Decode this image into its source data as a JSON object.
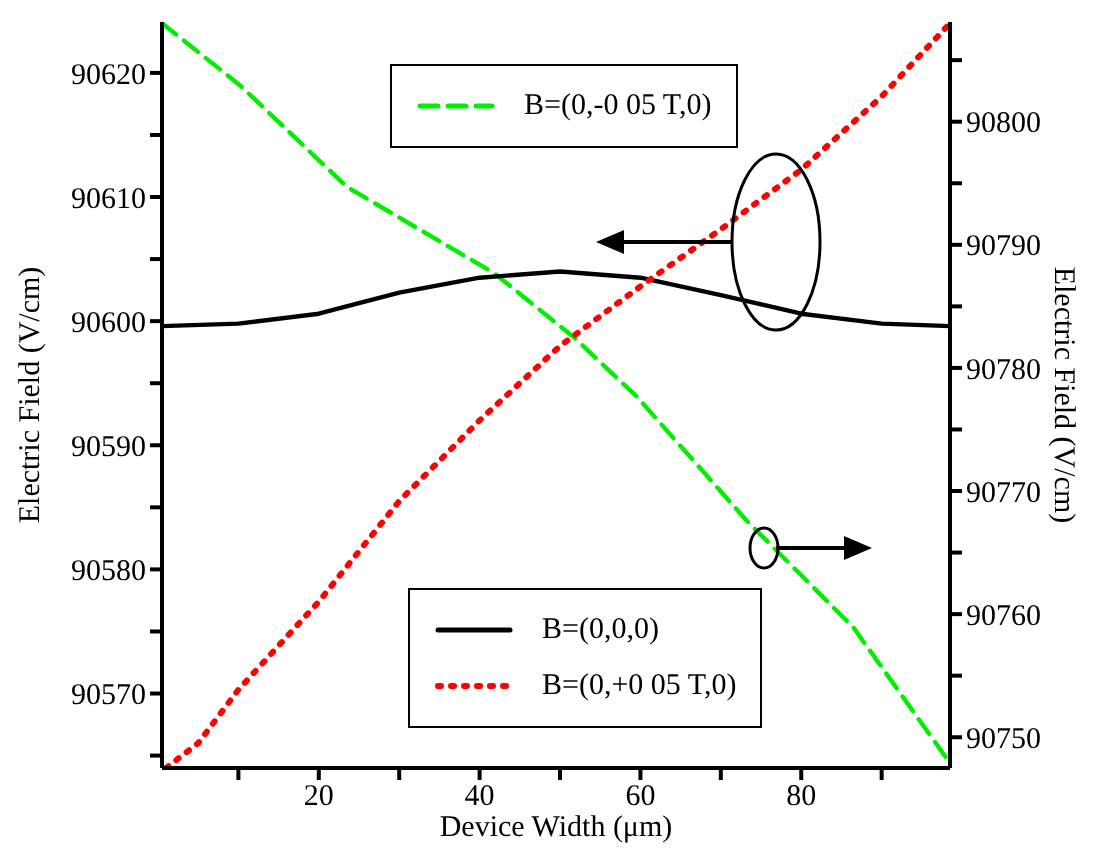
{
  "chart_data": {
    "type": "line",
    "xlabel": "Device Width (μm)",
    "ylabel": "Electric Field (V/cm)",
    "y2label": "Electric Field (V/cm)",
    "xlim": [
      0.5,
      98.5
    ],
    "xticks": [
      {
        "value": 10,
        "label": null
      },
      20,
      {
        "value": 30,
        "label": null
      },
      40,
      {
        "value": 50,
        "label": null
      },
      60,
      {
        "value": 70,
        "label": null
      },
      80,
      {
        "value": 90,
        "label": null
      }
    ],
    "ylim": [
      90564,
      90624.1
    ],
    "yticks": [
      {
        "value": 90565,
        "label": null
      },
      90570,
      {
        "value": 90575,
        "label": null
      },
      90580,
      {
        "value": 90585,
        "label": null
      },
      90590,
      {
        "value": 90595,
        "label": null
      },
      90600,
      {
        "value": 90605,
        "label": null
      },
      90610,
      {
        "value": 90615,
        "label": null
      },
      90620
    ],
    "y2lim": [
      90747.5,
      90808.1
    ],
    "y2ticks": [
      90750,
      {
        "value": 90755,
        "label": null
      },
      90760,
      {
        "value": 90765,
        "label": null
      },
      90770,
      {
        "value": 90775,
        "label": null
      },
      90780,
      {
        "value": 90785,
        "label": null
      },
      90790,
      {
        "value": 90795,
        "label": null
      },
      90800,
      {
        "value": 90805,
        "label": null
      }
    ],
    "grid": false,
    "legend": "bottom",
    "marker": "none",
    "series": [
      {
        "name": "B=(0,-0 05 T,0)",
        "color": "#00ee00",
        "line_style": "dashed",
        "axis": "y2",
        "x": [
          0.5,
          10.3,
          23.5,
          41.8,
          51.7,
          59.5,
          73.2,
          86.5,
          98.5
        ],
        "values": [
          90808.0,
          90802.9,
          90794.7,
          90787.7,
          90782.5,
          90777.7,
          90767.6,
          90758.9,
          90747.9
        ]
      },
      {
        "name": "B=(0,0,0)",
        "color": "#000000",
        "line_style": "solid",
        "axis": "y",
        "x": [
          0.5,
          10,
          20,
          30,
          40,
          50,
          60,
          70,
          80,
          90,
          98.5
        ],
        "values": [
          90599.6,
          90599.8,
          90600.6,
          90602.3,
          90603.5,
          90604.0,
          90603.5,
          90602.1,
          90600.6,
          90599.8,
          90599.6
        ]
      },
      {
        "name": "B=(0,+0 05 T,0)",
        "color": "#ff0000",
        "line_style": "dotted",
        "axis": "y",
        "x": [
          1,
          5,
          10,
          20,
          30,
          40,
          50,
          60,
          70,
          80,
          90,
          98.5
        ],
        "values": [
          90564,
          90566,
          90570.3,
          90577.4,
          90585.5,
          90592,
          90598,
          90602.8,
          90607.4,
          90612.2,
          90618.1,
          90624
        ]
      }
    ]
  }
}
